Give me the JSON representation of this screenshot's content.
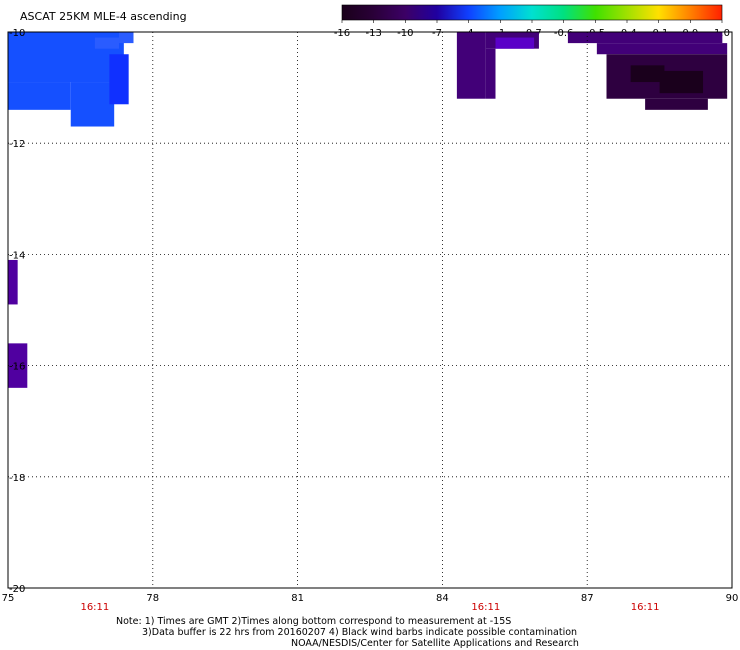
{
  "title": "ASCAT 25KM MLE-4 ascending",
  "colorbar": {
    "labels": [
      "-16",
      "-13",
      "-10",
      "-7",
      "-4",
      "-1",
      "-0.7",
      "-0.6",
      "-0.5",
      "-0.4",
      "-0.1",
      "0.0",
      "1.0"
    ],
    "colors": [
      "#1a001a",
      "#2a0038",
      "#3c0066",
      "#2000a0",
      "#1040ff",
      "#00a0ff",
      "#00e0d0",
      "#00e080",
      "#40e000",
      "#a0e000",
      "#ffe000",
      "#ff8000",
      "#ff2000"
    ]
  },
  "axes": {
    "lon_ticks": [
      "75",
      "78",
      "81",
      "84",
      "87",
      "90"
    ],
    "lat_ticks": [
      "-10",
      "-12",
      "-14",
      "-16",
      "-18",
      "-20"
    ],
    "lon_range": [
      75,
      90
    ],
    "lat_range": [
      -10,
      -20
    ],
    "grid": true
  },
  "time_labels": [
    {
      "text": "16:11",
      "lon": 76.8
    },
    {
      "text": "16:11",
      "lon": 84.9
    },
    {
      "text": "16:11",
      "lon": 88.2
    }
  ],
  "notes": [
    "Note: 1) Times are GMT 2)Times along bottom correspond to measurement at -15S",
    "3)Data buffer is 22 hrs from 20160207 4) Black wind barbs indicate possible contamination",
    "NOAA/NESDIS/Center for Satellite Applications and Research"
  ],
  "data_patches": [
    {
      "color": "#1550ff",
      "cells": [
        [
          75.0,
          -10.0,
          77.4,
          -10.9
        ],
        [
          75.0,
          -10.9,
          76.3,
          -11.4
        ],
        [
          76.3,
          -10.9,
          77.2,
          -11.7
        ]
      ]
    },
    {
      "color": "#2a5cff",
      "cells": [
        [
          77.3,
          -10.0,
          77.6,
          -10.2
        ],
        [
          76.8,
          -10.1,
          77.3,
          -10.3
        ]
      ]
    },
    {
      "color": "#1030ff",
      "cells": [
        [
          77.1,
          -10.4,
          77.5,
          -11.3
        ]
      ]
    },
    {
      "color": "#5000a0",
      "cells": [
        [
          75.0,
          -14.1,
          75.2,
          -14.9
        ],
        [
          75.0,
          -15.6,
          75.4,
          -16.4
        ]
      ]
    },
    {
      "color": "#420078",
      "cells": [
        [
          84.3,
          -10.0,
          84.9,
          -11.2
        ],
        [
          84.9,
          -10.0,
          86.0,
          -10.3
        ],
        [
          84.9,
          -10.3,
          85.1,
          -11.2
        ]
      ]
    },
    {
      "color": "#5a00c8",
      "cells": [
        [
          85.1,
          -10.1,
          85.9,
          -10.3
        ]
      ]
    },
    {
      "color": "#420078",
      "cells": [
        [
          86.6,
          -10.0,
          89.8,
          -10.2
        ],
        [
          87.2,
          -10.2,
          89.9,
          -10.4
        ]
      ]
    },
    {
      "color": "#2e0040",
      "cells": [
        [
          87.4,
          -10.4,
          89.9,
          -11.2
        ],
        [
          88.2,
          -11.2,
          89.5,
          -11.4
        ]
      ]
    },
    {
      "color": "#1a001c",
      "cells": [
        [
          88.5,
          -10.7,
          89.4,
          -11.1
        ],
        [
          87.9,
          -10.6,
          88.6,
          -10.9
        ]
      ]
    }
  ]
}
